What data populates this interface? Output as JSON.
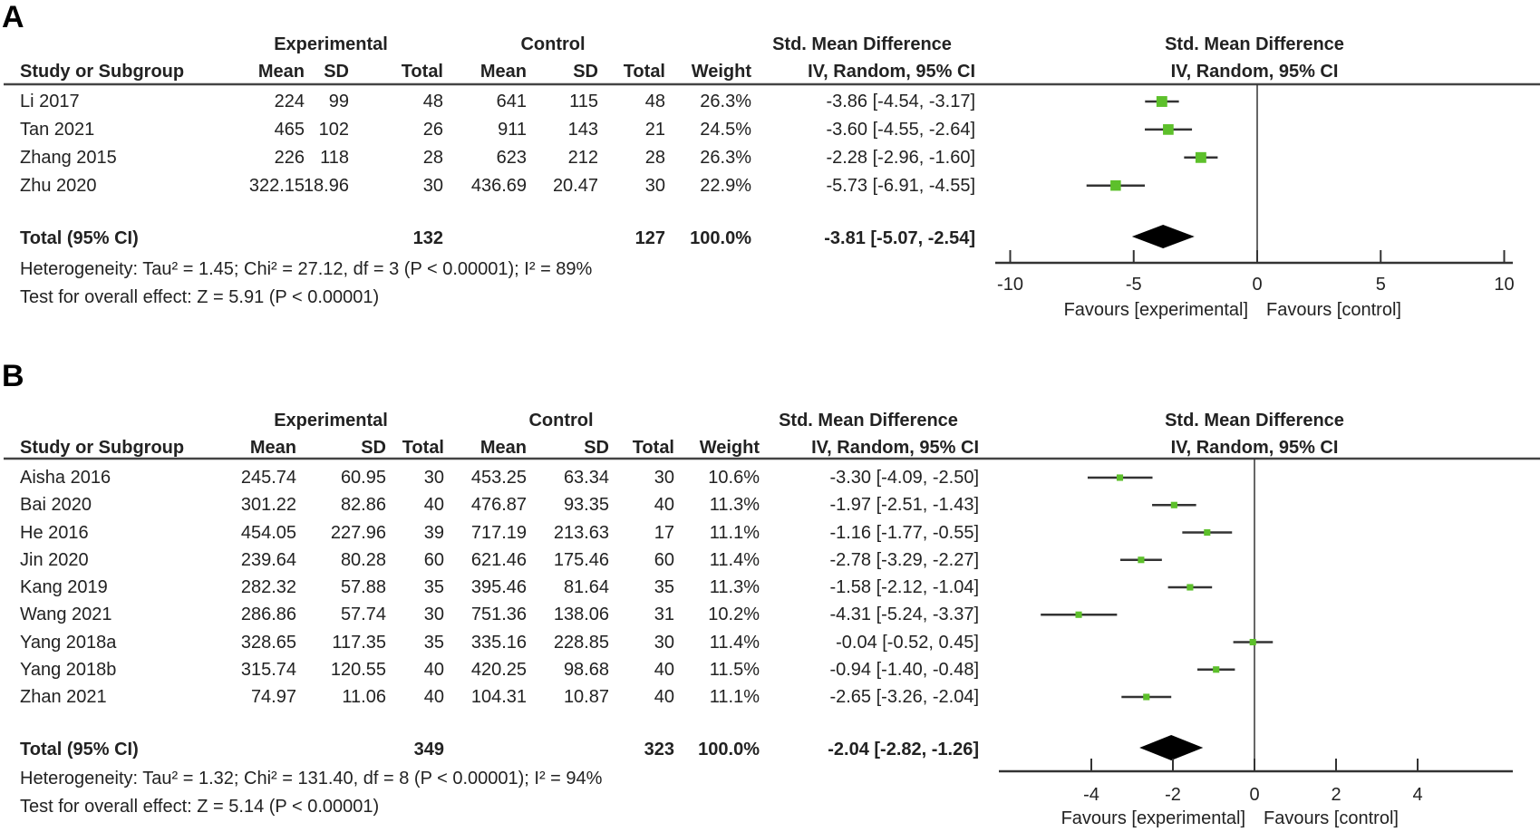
{
  "chart_data": [
    {
      "type": "forest",
      "panel_label": "A",
      "headers": {
        "experimental": "Experimental",
        "control": "Control",
        "smd": "Std. Mean Difference",
        "plot_title": "Std. Mean Difference",
        "study": "Study or Subgroup",
        "mean": "Mean",
        "sd": "SD",
        "total": "Total",
        "weight": "Weight",
        "method": "IV, Random, 95% CI",
        "plot_method": "IV, Random, 95% CI"
      },
      "studies": [
        {
          "name": "Li 2017",
          "exp_mean": "224",
          "exp_sd": "99",
          "exp_total": "48",
          "ctl_mean": "641",
          "ctl_sd": "115",
          "ctl_total": "48",
          "weight": "26.3%",
          "ci_text": "-3.86 [-4.54, -3.17]",
          "est": -3.86,
          "lo": -4.54,
          "hi": -3.17,
          "w": 26.3
        },
        {
          "name": "Tan 2021",
          "exp_mean": "465",
          "exp_sd": "102",
          "exp_total": "26",
          "ctl_mean": "911",
          "ctl_sd": "143",
          "ctl_total": "21",
          "weight": "24.5%",
          "ci_text": "-3.60 [-4.55, -2.64]",
          "est": -3.6,
          "lo": -4.55,
          "hi": -2.64,
          "w": 24.5
        },
        {
          "name": "Zhang 2015",
          "exp_mean": "226",
          "exp_sd": "118",
          "exp_total": "28",
          "ctl_mean": "623",
          "ctl_sd": "212",
          "ctl_total": "28",
          "weight": "26.3%",
          "ci_text": "-2.28 [-2.96, -1.60]",
          "est": -2.28,
          "lo": -2.96,
          "hi": -1.6,
          "w": 26.3
        },
        {
          "name": "Zhu 2020",
          "exp_mean": "322.15",
          "exp_sd": "18.96",
          "exp_total": "30",
          "ctl_mean": "436.69",
          "ctl_sd": "20.47",
          "ctl_total": "30",
          "weight": "22.9%",
          "ci_text": "-5.73 [-6.91, -4.55]",
          "est": -5.73,
          "lo": -6.91,
          "hi": -4.55,
          "w": 22.9
        }
      ],
      "total": {
        "label": "Total (95% CI)",
        "exp_total": "132",
        "ctl_total": "127",
        "weight": "100.0%",
        "ci_text": "-3.81 [-5.07, -2.54]",
        "est": -3.81,
        "lo": -5.07,
        "hi": -2.54
      },
      "heterogeneity": "Heterogeneity: Tau² = 1.45; Chi² = 27.12, df = 3 (P < 0.00001); I² = 89%",
      "overall_effect": "Test for overall effect: Z = 5.91 (P < 0.00001)",
      "xlim": [
        -10,
        10
      ],
      "ticks": [
        -10,
        -5,
        0,
        5,
        10
      ],
      "tick_labels": [
        "-10",
        "-5",
        "0",
        "5",
        "10"
      ],
      "favours_left": "Favours [experimental]",
      "favours_right": "Favours [control]",
      "marker_color": "#5dc02b"
    },
    {
      "type": "forest",
      "panel_label": "B",
      "headers": {
        "experimental": "Experimental",
        "control": "Control",
        "smd": "Std. Mean Difference",
        "plot_title": "Std. Mean Difference",
        "study": "Study or Subgroup",
        "mean": "Mean",
        "sd": "SD",
        "total": "Total",
        "weight": "Weight",
        "method": "IV, Random, 95% CI",
        "plot_method": "IV, Random, 95% CI"
      },
      "studies": [
        {
          "name": "Aisha 2016",
          "exp_mean": "245.74",
          "exp_sd": "60.95",
          "exp_total": "30",
          "ctl_mean": "453.25",
          "ctl_sd": "63.34",
          "ctl_total": "30",
          "weight": "10.6%",
          "ci_text": "-3.30 [-4.09, -2.50]",
          "est": -3.3,
          "lo": -4.09,
          "hi": -2.5,
          "w": 10.6
        },
        {
          "name": "Bai 2020",
          "exp_mean": "301.22",
          "exp_sd": "82.86",
          "exp_total": "40",
          "ctl_mean": "476.87",
          "ctl_sd": "93.35",
          "ctl_total": "40",
          "weight": "11.3%",
          "ci_text": "-1.97 [-2.51, -1.43]",
          "est": -1.97,
          "lo": -2.51,
          "hi": -1.43,
          "w": 11.3
        },
        {
          "name": "He 2016",
          "exp_mean": "454.05",
          "exp_sd": "227.96",
          "exp_total": "39",
          "ctl_mean": "717.19",
          "ctl_sd": "213.63",
          "ctl_total": "17",
          "weight": "11.1%",
          "ci_text": "-1.16 [-1.77, -0.55]",
          "est": -1.16,
          "lo": -1.77,
          "hi": -0.55,
          "w": 11.1
        },
        {
          "name": "Jin 2020",
          "exp_mean": "239.64",
          "exp_sd": "80.28",
          "exp_total": "60",
          "ctl_mean": "621.46",
          "ctl_sd": "175.46",
          "ctl_total": "60",
          "weight": "11.4%",
          "ci_text": "-2.78 [-3.29, -2.27]",
          "est": -2.78,
          "lo": -3.29,
          "hi": -2.27,
          "w": 11.4
        },
        {
          "name": "Kang 2019",
          "exp_mean": "282.32",
          "exp_sd": "57.88",
          "exp_total": "35",
          "ctl_mean": "395.46",
          "ctl_sd": "81.64",
          "ctl_total": "35",
          "weight": "11.3%",
          "ci_text": "-1.58 [-2.12, -1.04]",
          "est": -1.58,
          "lo": -2.12,
          "hi": -1.04,
          "w": 11.3
        },
        {
          "name": "Wang 2021",
          "exp_mean": "286.86",
          "exp_sd": "57.74",
          "exp_total": "30",
          "ctl_mean": "751.36",
          "ctl_sd": "138.06",
          "ctl_total": "31",
          "weight": "10.2%",
          "ci_text": "-4.31 [-5.24, -3.37]",
          "est": -4.31,
          "lo": -5.24,
          "hi": -3.37,
          "w": 10.2
        },
        {
          "name": "Yang 2018a",
          "exp_mean": "328.65",
          "exp_sd": "117.35",
          "exp_total": "35",
          "ctl_mean": "335.16",
          "ctl_sd": "228.85",
          "ctl_total": "30",
          "weight": "11.4%",
          "ci_text": "-0.04 [-0.52, 0.45]",
          "est": -0.04,
          "lo": -0.52,
          "hi": 0.45,
          "w": 11.4
        },
        {
          "name": "Yang 2018b",
          "exp_mean": "315.74",
          "exp_sd": "120.55",
          "exp_total": "40",
          "ctl_mean": "420.25",
          "ctl_sd": "98.68",
          "ctl_total": "40",
          "weight": "11.5%",
          "ci_text": "-0.94 [-1.40, -0.48]",
          "est": -0.94,
          "lo": -1.4,
          "hi": -0.48,
          "w": 11.5
        },
        {
          "name": "Zhan 2021",
          "exp_mean": "74.97",
          "exp_sd": "11.06",
          "exp_total": "40",
          "ctl_mean": "104.31",
          "ctl_sd": "10.87",
          "ctl_total": "40",
          "weight": "11.1%",
          "ci_text": "-2.65 [-3.26, -2.04]",
          "est": -2.65,
          "lo": -3.26,
          "hi": -2.04,
          "w": 11.1
        }
      ],
      "total": {
        "label": "Total (95% CI)",
        "exp_total": "349",
        "ctl_total": "323",
        "weight": "100.0%",
        "ci_text": "-2.04 [-2.82, -1.26]",
        "est": -2.04,
        "lo": -2.82,
        "hi": -1.26
      },
      "heterogeneity": "Heterogeneity: Tau² = 1.32; Chi² = 131.40, df = 8 (P < 0.00001); I² = 94%",
      "overall_effect": "Test for overall effect: Z = 5.14 (P < 0.00001)",
      "xlim": [
        -6.3,
        6.3
      ],
      "ticks": [
        -4,
        -2,
        0,
        2,
        4
      ],
      "tick_labels": [
        "-4",
        "-2",
        "0",
        "2",
        "4"
      ],
      "favours_left": "Favours [experimental]",
      "favours_right": "Favours [control]",
      "marker_color": "#5dc02b"
    }
  ]
}
